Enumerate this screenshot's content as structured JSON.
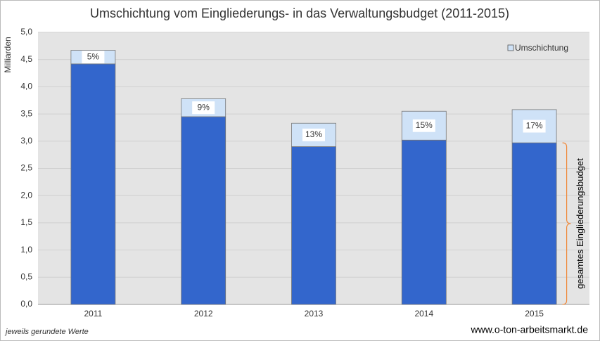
{
  "chart_data": {
    "type": "stacked_bar",
    "title": "Umschichtung vom Eingliederungs- in das Verwaltungsbudget (2011-2015)",
    "y_axis_label": "Milliarden",
    "categories": [
      "2011",
      "2012",
      "2013",
      "2014",
      "2015"
    ],
    "series": [
      {
        "color": "#3366cc",
        "values": [
          4.42,
          3.45,
          2.9,
          3.02,
          2.97
        ]
      },
      {
        "name": "Umschichtung",
        "color": "#cfe2f7",
        "values": [
          0.25,
          0.33,
          0.43,
          0.53,
          0.61
        ]
      }
    ],
    "share_labels": [
      "5%",
      "9%",
      "13%",
      "15%",
      "17%"
    ],
    "brace_label": "gesamtes Eingliederungsbudget",
    "footnote": "jeweils gerundete Werte",
    "source": "www.o-ton-arbeitsmarkt.de",
    "ylim": [
      0,
      5
    ],
    "yticks": [
      {
        "value": 0,
        "label": "0,0"
      },
      {
        "value": 0.5,
        "label": "0,5"
      },
      {
        "value": 1,
        "label": "1,0"
      },
      {
        "value": 1.5,
        "label": "1,5"
      },
      {
        "value": 2,
        "label": "2,0"
      },
      {
        "value": 2.5,
        "label": "2,5"
      },
      {
        "value": 3,
        "label": "3,0"
      },
      {
        "value": 3.5,
        "label": "3,5"
      },
      {
        "value": 4,
        "label": "4,0"
      },
      {
        "value": 4.5,
        "label": "4,5"
      },
      {
        "value": 5,
        "label": "5,0"
      }
    ],
    "grid": true,
    "legend": "top-right"
  }
}
